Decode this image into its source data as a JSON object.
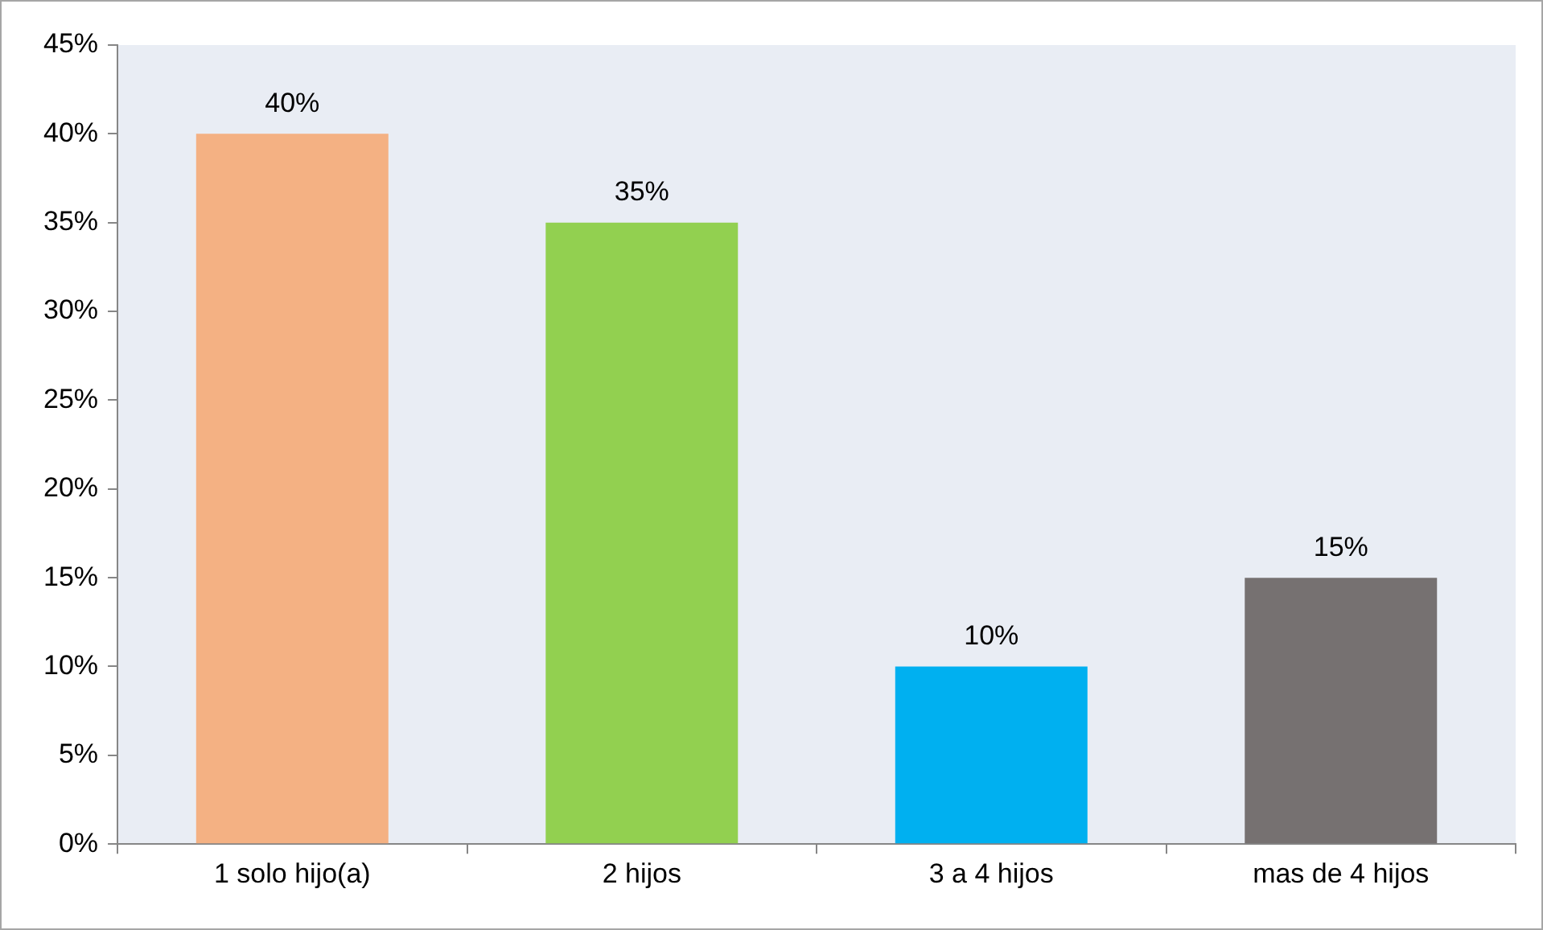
{
  "chart_data": {
    "type": "bar",
    "categories": [
      "1 solo hijo(a)",
      "2 hijos",
      "3 a 4 hijos",
      "mas de 4 hijos"
    ],
    "values": [
      40,
      35,
      10,
      15
    ],
    "colors": [
      "#f4b183",
      "#92d050",
      "#00b0f0",
      "#767171"
    ],
    "value_labels": [
      "40%",
      "35%",
      "10%",
      "15%"
    ],
    "ylim": [
      0,
      45
    ],
    "yticks": [
      {
        "value": 0,
        "label": "0%"
      },
      {
        "value": 5,
        "label": "5%"
      },
      {
        "value": 10,
        "label": "10%"
      },
      {
        "value": 15,
        "label": "15%"
      },
      {
        "value": 20,
        "label": "20%"
      },
      {
        "value": 25,
        "label": "25%"
      },
      {
        "value": 30,
        "label": "30%"
      },
      {
        "value": 35,
        "label": "35%"
      },
      {
        "value": 40,
        "label": "40%"
      },
      {
        "value": 45,
        "label": "45%"
      }
    ],
    "grid": false,
    "legend": false
  }
}
